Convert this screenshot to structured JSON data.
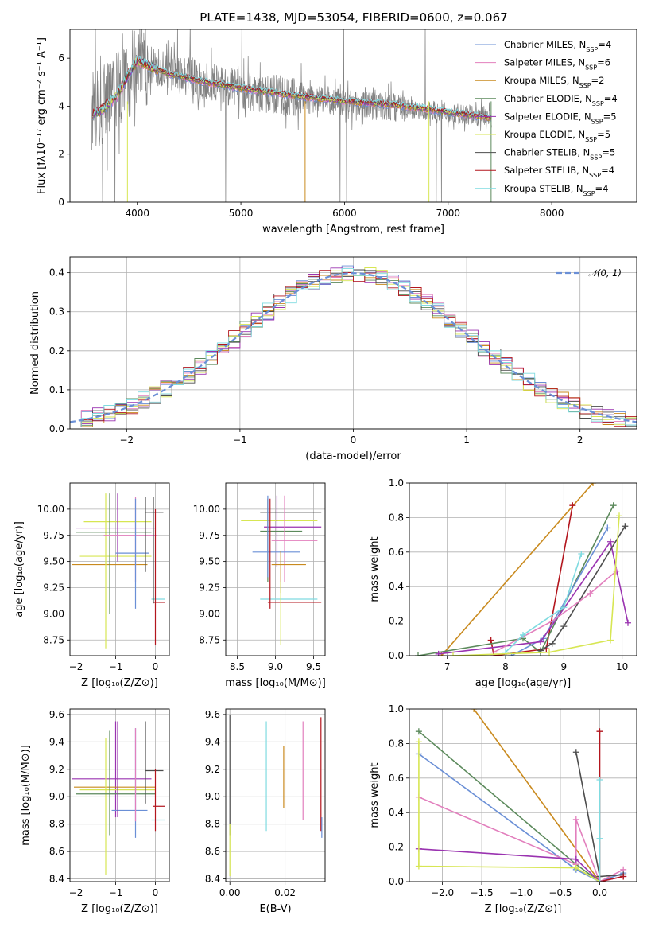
{
  "figure": {
    "title": "PLATE=1438, MJD=53054, FIBERID=0600, z=0.067"
  },
  "chart_data": [
    {
      "id": "spectrum",
      "type": "line",
      "xlabel": "wavelength [Angstrom, rest frame]",
      "ylabel": "Flux [fλ10⁻¹⁷ erg cm⁻² s⁻¹ A⁻¹]",
      "xlim": [
        3350,
        8820
      ],
      "ylim": [
        0,
        7.2
      ],
      "xticks": [
        4000,
        5000,
        6000,
        7000,
        8000
      ],
      "yticks": [
        0,
        2,
        4,
        6
      ],
      "data_color": "#808080",
      "data_anchors": [
        [
          3570,
          3.9
        ],
        [
          3700,
          4.2
        ],
        [
          3900,
          5.0
        ],
        [
          4000,
          5.8
        ],
        [
          4200,
          5.6
        ],
        [
          4500,
          5.2
        ],
        [
          5000,
          4.7
        ],
        [
          5500,
          4.35
        ],
        [
          6000,
          4.1
        ],
        [
          6500,
          3.95
        ],
        [
          7000,
          3.75
        ],
        [
          7420,
          3.5
        ]
      ],
      "model_anchors": [
        [
          3570,
          3.7
        ],
        [
          3650,
          3.8
        ],
        [
          3800,
          4.4
        ],
        [
          3900,
          5.2
        ],
        [
          4000,
          5.9
        ],
        [
          4100,
          5.7
        ],
        [
          4300,
          5.35
        ],
        [
          4600,
          5.05
        ],
        [
          5000,
          4.75
        ],
        [
          5500,
          4.45
        ],
        [
          6000,
          4.2
        ],
        [
          6500,
          4.05
        ],
        [
          7000,
          3.75
        ],
        [
          7420,
          3.5
        ]
      ],
      "series": [
        {
          "label": "Chabrier MILES, N",
          "sub": "SSP",
          "n": "4",
          "color": "#6a8fd6"
        },
        {
          "label": "Salpeter MILES, N",
          "sub": "SSP",
          "n": "6",
          "color": "#e27fbd"
        },
        {
          "label": "Kroupa MILES, N",
          "sub": "SSP",
          "n": "2",
          "color": "#c98a1e"
        },
        {
          "label": "Chabrier ELODIE, N",
          "sub": "SSP",
          "n": "4",
          "color": "#5c8a5c"
        },
        {
          "label": "Salpeter ELODIE, N",
          "sub": "SSP",
          "n": "5",
          "color": "#9a33b0"
        },
        {
          "label": "Kroupa ELODIE, N",
          "sub": "SSP",
          "n": "5",
          "color": "#d7e653"
        },
        {
          "label": "Chabrier STELIB, N",
          "sub": "SSP",
          "n": "5",
          "color": "#4d4d4d"
        },
        {
          "label": "Salpeter STELIB, N",
          "sub": "SSP",
          "n": "4",
          "color": "#b3161e"
        },
        {
          "label": "Kroupa STELIB, N",
          "sub": "SSP",
          "n": "4",
          "color": "#7fdbe0"
        }
      ]
    },
    {
      "id": "residuals",
      "type": "line",
      "xlabel": "(data-model)/error",
      "ylabel": "Normed distribution",
      "xlim": [
        -2.5,
        2.5
      ],
      "ylim": [
        0,
        0.44
      ],
      "xticks": [
        -2,
        -1,
        0,
        1,
        2
      ],
      "yticks": [
        0.0,
        0.1,
        0.2,
        0.3,
        0.4
      ],
      "grid": true,
      "legend": "𝒩(0, 1)",
      "reference_color": "#6a8fd6",
      "bin_width": 0.1
    },
    {
      "id": "age_vs_Z",
      "type": "scatter",
      "xlabel": "Z [log₁₀(Z/Z⊙)]",
      "ylabel": "age  [log₁₀(age/yr)]",
      "xlim": [
        -2.15,
        0.35
      ],
      "ylim": [
        8.6,
        10.25
      ],
      "xticks": [
        -2,
        -1,
        0
      ],
      "yticks": [
        8.75,
        9.0,
        9.25,
        9.5,
        9.75,
        10.0
      ],
      "errorbars": [
        {
          "c": 4,
          "x": -2.0,
          "x0": -2.0,
          "x1": 0.0,
          "y": 9.82,
          "y0": 9.82,
          "y1": 9.82
        },
        {
          "c": 2,
          "x": -1.0,
          "x0": -2.1,
          "x1": -0.2,
          "y": 9.47,
          "y0": 9.47,
          "y1": 9.47
        },
        {
          "c": 5,
          "x": -1.25,
          "x0": -1.9,
          "x1": -0.1,
          "y": 9.55,
          "y0": 8.67,
          "y1": 10.15
        },
        {
          "c": 5,
          "x": -1.0,
          "x0": -1.8,
          "x1": -0.1,
          "y": 9.88,
          "y0": 9.88,
          "y1": 9.88
        },
        {
          "c": 3,
          "x": -1.15,
          "x0": -2.0,
          "x1": -0.1,
          "y": 9.78,
          "y0": 9.0,
          "y1": 10.15
        },
        {
          "c": 4,
          "x": -0.95,
          "x0": -0.95,
          "x1": -0.95,
          "y": 9.82,
          "y0": 9.5,
          "y1": 10.15
        },
        {
          "c": 1,
          "x": -0.5,
          "x0": -1.3,
          "x1": 0.05,
          "y": 9.75,
          "y0": 9.3,
          "y1": 10.12
        },
        {
          "c": 0,
          "x": -0.5,
          "x0": -1.0,
          "x1": -0.15,
          "y": 9.58,
          "y0": 9.05,
          "y1": 10.1
        },
        {
          "c": 6,
          "x": -0.25,
          "x0": -0.25,
          "x1": 0.2,
          "y": 9.97,
          "y0": 9.4,
          "y1": 10.12
        },
        {
          "c": 8,
          "x": 0.0,
          "x0": -0.1,
          "x1": 0.25,
          "y": 9.14,
          "y0": 9.14,
          "y1": 9.14
        },
        {
          "c": 7,
          "x": 0.0,
          "x0": -0.05,
          "x1": 0.25,
          "y": 9.11,
          "y0": 8.7,
          "y1": 10.0
        },
        {
          "c": 6,
          "x": -0.05,
          "x0": -0.05,
          "x1": -0.05,
          "y": 9.97,
          "y0": 9.1,
          "y1": 10.12
        }
      ]
    },
    {
      "id": "age_vs_mass",
      "type": "scatter",
      "xlabel": "mass [log₁₀(M/M⊙)]",
      "ylabel": "",
      "xlim": [
        8.35,
        9.65
      ],
      "ylim": [
        8.6,
        10.25
      ],
      "xticks": [
        8.5,
        9.0,
        9.5
      ],
      "yticks": [
        8.75,
        9.0,
        9.25,
        9.5,
        9.75,
        10.0
      ],
      "errorbars": [
        {
          "c": 5,
          "x": 9.08,
          "x0": 8.55,
          "x1": 9.55,
          "y": 9.89,
          "y0": 9.89,
          "y1": 9.89
        },
        {
          "c": 6,
          "x": 9.2,
          "x0": 8.8,
          "x1": 9.6,
          "y": 9.97,
          "y0": 9.97,
          "y1": 9.97
        },
        {
          "c": 4,
          "x": 9.02,
          "x0": 8.85,
          "x1": 9.6,
          "y": 9.83,
          "y0": 9.45,
          "y1": 10.13
        },
        {
          "c": 3,
          "x": 8.9,
          "x0": 8.8,
          "x1": 9.35,
          "y": 9.79,
          "y0": 9.3,
          "y1": 10.1
        },
        {
          "c": 1,
          "x": 9.12,
          "x0": 8.95,
          "x1": 9.55,
          "y": 9.7,
          "y0": 9.3,
          "y1": 10.13
        },
        {
          "c": 0,
          "x": 8.9,
          "x0": 8.7,
          "x1": 9.32,
          "y": 9.59,
          "y0": 9.35,
          "y1": 10.13
        },
        {
          "c": 2,
          "x": 9.07,
          "x0": 8.95,
          "x1": 9.4,
          "y": 9.47,
          "y0": 9.2,
          "y1": 9.6
        },
        {
          "c": 8,
          "x": 8.9,
          "x0": 8.8,
          "x1": 9.55,
          "y": 9.14,
          "y0": 9.14,
          "y1": 9.14
        },
        {
          "c": 7,
          "x": 8.93,
          "x0": 8.9,
          "x1": 9.6,
          "y": 9.11,
          "y0": 9.05,
          "y1": 10.1
        },
        {
          "c": 5,
          "x": 9.07,
          "x0": 9.07,
          "x1": 9.07,
          "y": 9.0,
          "y0": 8.7,
          "y1": 9.3
        }
      ]
    },
    {
      "id": "weight_vs_age",
      "type": "line",
      "xlabel": "age  [log₁₀(age/yr)]",
      "ylabel": "mass weight",
      "xlim": [
        6.35,
        10.25
      ],
      "ylim": [
        0,
        1
      ],
      "xticks": [
        7,
        8,
        9,
        10
      ],
      "yticks": [
        0.0,
        0.2,
        0.4,
        0.6,
        0.8,
        1.0
      ],
      "grid": true,
      "series_points": [
        {
          "c": 2,
          "pts": [
            [
              6.9,
              0.0
            ],
            [
              9.5,
              1.0
            ]
          ]
        },
        {
          "c": 7,
          "pts": [
            [
              7.75,
              0.09
            ],
            [
              7.8,
              0.0
            ],
            [
              8.7,
              0.04
            ],
            [
              9.15,
              0.87
            ]
          ]
        },
        {
          "c": 3,
          "pts": [
            [
              6.5,
              0.0
            ],
            [
              8.3,
              0.1
            ],
            [
              8.6,
              0.02
            ],
            [
              9.85,
              0.87
            ]
          ]
        },
        {
          "c": 0,
          "pts": [
            [
              8.1,
              0.0
            ],
            [
              8.65,
              0.1
            ],
            [
              9.75,
              0.74
            ]
          ]
        },
        {
          "c": 4,
          "pts": [
            [
              6.85,
              0.01
            ],
            [
              8.6,
              0.08
            ],
            [
              9.8,
              0.66
            ],
            [
              10.1,
              0.19
            ]
          ]
        },
        {
          "c": 6,
          "pts": [
            [
              8.6,
              0.03
            ],
            [
              8.8,
              0.07
            ],
            [
              9.0,
              0.17
            ],
            [
              10.05,
              0.75
            ]
          ]
        },
        {
          "c": 1,
          "pts": [
            [
              7.8,
              0.02
            ],
            [
              8.8,
              0.2
            ],
            [
              9.45,
              0.36
            ],
            [
              9.9,
              0.49
            ]
          ]
        },
        {
          "c": 8,
          "pts": [
            [
              8.0,
              0.02
            ],
            [
              8.3,
              0.12
            ],
            [
              9.0,
              0.28
            ],
            [
              9.3,
              0.59
            ]
          ]
        },
        {
          "c": 5,
          "pts": [
            [
              7.1,
              0.0
            ],
            [
              8.75,
              0.02
            ],
            [
              9.8,
              0.09
            ],
            [
              9.95,
              0.81
            ]
          ]
        }
      ]
    },
    {
      "id": "mass_vs_Z",
      "type": "scatter",
      "xlabel": "Z [log₁₀(Z/Z⊙)]",
      "ylabel": "mass [log₁₀(M/M⊙)]",
      "xlim": [
        -2.15,
        0.35
      ],
      "ylim": [
        8.38,
        9.64
      ],
      "xticks": [
        -2,
        -1,
        0
      ],
      "yticks": [
        8.4,
        8.6,
        8.8,
        9.0,
        9.2,
        9.4,
        9.6
      ],
      "errorbars": [
        {
          "c": 4,
          "x": -1.0,
          "x0": -2.1,
          "x1": -0.1,
          "y": 9.13,
          "y0": 8.85,
          "y1": 9.55
        },
        {
          "c": 2,
          "x": -1.0,
          "x0": -2.05,
          "x1": 0.0,
          "y": 9.07,
          "y0": 9.07,
          "y1": 9.07
        },
        {
          "c": 5,
          "x": -1.25,
          "x0": -1.9,
          "x1": 0.0,
          "y": 9.05,
          "y0": 8.43,
          "y1": 9.43
        },
        {
          "c": 3,
          "x": -1.15,
          "x0": -2.0,
          "x1": 0.0,
          "y": 9.02,
          "y0": 8.72,
          "y1": 9.48
        },
        {
          "c": 0,
          "x": -0.5,
          "x0": -1.1,
          "x1": -0.2,
          "y": 8.9,
          "y0": 8.7,
          "y1": 9.5
        },
        {
          "c": 1,
          "x": -0.5,
          "x0": -0.5,
          "x1": -0.5,
          "y": 9.15,
          "y0": 8.82,
          "y1": 9.5
        },
        {
          "c": 6,
          "x": -0.25,
          "x0": -0.25,
          "x1": 0.2,
          "y": 9.19,
          "y0": 8.95,
          "y1": 9.55
        },
        {
          "c": 8,
          "x": 0.0,
          "x0": -0.1,
          "x1": 0.25,
          "y": 8.83,
          "y0": 8.83,
          "y1": 8.83
        },
        {
          "c": 7,
          "x": 0.0,
          "x0": -0.05,
          "x1": 0.25,
          "y": 8.93,
          "y0": 8.75,
          "y1": 9.2
        },
        {
          "c": 4,
          "x": -0.95,
          "x0": -0.95,
          "x1": -0.95,
          "y": 9.13,
          "y0": 8.85,
          "y1": 9.55
        }
      ]
    },
    {
      "id": "mass_vs_ebv",
      "type": "scatter",
      "xlabel": "E(B-V)",
      "ylabel": "",
      "xlim": [
        -0.0015,
        0.0345
      ],
      "ylim": [
        8.38,
        9.64
      ],
      "xticks": [
        0.0,
        0.02
      ],
      "tick_labels": [
        "0.00",
        "0.02"
      ],
      "yticks": [
        8.4,
        8.6,
        8.8,
        9.0,
        9.2,
        9.4,
        9.6
      ],
      "errorbars": [
        {
          "c": 6,
          "x": 0.0,
          "x0": 0.0,
          "x1": 0.0,
          "y": 9.2,
          "y0": 8.72,
          "y1": 9.6
        },
        {
          "c": 5,
          "x": 0.0,
          "x0": 0.0,
          "x1": 0.0,
          "y": 8.6,
          "y0": 8.42,
          "y1": 8.8
        },
        {
          "c": 8,
          "x": 0.0132,
          "x0": 0.0132,
          "x1": 0.0132,
          "y": 9.15,
          "y0": 8.75,
          "y1": 9.55
        },
        {
          "c": 2,
          "x": 0.0195,
          "x0": 0.0195,
          "x1": 0.0195,
          "y": 9.15,
          "y0": 8.92,
          "y1": 9.37
        },
        {
          "c": 1,
          "x": 0.0265,
          "x0": 0.0265,
          "x1": 0.0265,
          "y": 9.2,
          "y0": 8.83,
          "y1": 9.55
        },
        {
          "c": 7,
          "x": 0.033,
          "x0": 0.033,
          "x1": 0.033,
          "y": 9.2,
          "y0": 8.75,
          "y1": 9.58
        },
        {
          "c": 0,
          "x": 0.0333,
          "x0": 0.0333,
          "x1": 0.0333,
          "y": 8.78,
          "y0": 8.7,
          "y1": 8.85
        }
      ]
    },
    {
      "id": "weight_vs_Z",
      "type": "line",
      "xlabel": "Z [log₁₀(Z/Z⊙)]",
      "ylabel": "mass weight",
      "xlim": [
        -2.42,
        0.47
      ],
      "ylim": [
        0,
        1
      ],
      "xticks": [
        -2.0,
        -1.5,
        -1.0,
        -0.5,
        0.0
      ],
      "tick_labels": [
        "−2.0",
        "−1.5",
        "−1.0",
        "−0.5",
        "0.0"
      ],
      "yticks": [
        0.0,
        0.2,
        0.4,
        0.6,
        0.8,
        1.0
      ],
      "grid": true,
      "series_points": [
        {
          "c": 2,
          "pts": [
            [
              -1.6,
              1.0
            ],
            [
              0.0,
              0.0
            ]
          ]
        },
        {
          "c": 3,
          "pts": [
            [
              -2.3,
              0.87
            ],
            [
              -0.3,
              0.1
            ],
            [
              0.0,
              0.0
            ]
          ]
        },
        {
          "c": 0,
          "pts": [
            [
              -2.3,
              0.74
            ],
            [
              -0.3,
              0.07
            ],
            [
              0.0,
              0.0
            ],
            [
              0.3,
              0.05
            ]
          ]
        },
        {
          "c": 1,
          "pts": [
            [
              -2.3,
              0.49
            ],
            [
              -0.3,
              0.1
            ],
            [
              -0.3,
              0.36
            ],
            [
              0.0,
              0.0
            ],
            [
              0.3,
              0.07
            ]
          ]
        },
        {
          "c": 4,
          "pts": [
            [
              -2.3,
              0.19
            ],
            [
              -0.3,
              0.13
            ],
            [
              0.0,
              0.0
            ],
            [
              0.3,
              0.03
            ]
          ]
        },
        {
          "c": 5,
          "pts": [
            [
              -2.3,
              0.81
            ],
            [
              -2.3,
              0.09
            ],
            [
              -0.3,
              0.08
            ],
            [
              0.0,
              0.0
            ]
          ]
        },
        {
          "c": 6,
          "pts": [
            [
              -0.3,
              0.75
            ],
            [
              0.0,
              0.03
            ],
            [
              0.3,
              0.04
            ]
          ]
        },
        {
          "c": 7,
          "pts": [
            [
              0.0,
              0.87
            ],
            [
              0.0,
              0.0
            ],
            [
              0.3,
              0.03
            ]
          ]
        },
        {
          "c": 8,
          "pts": [
            [
              0.0,
              0.59
            ],
            [
              0.0,
              0.25
            ],
            [
              0.0,
              0.0
            ]
          ]
        }
      ]
    }
  ]
}
